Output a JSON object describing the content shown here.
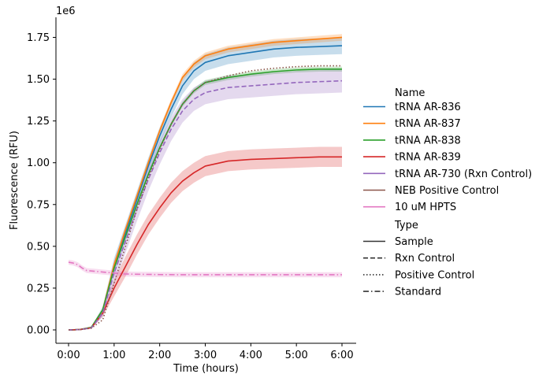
{
  "chart_data": {
    "type": "line",
    "x_tick_labels": [
      "0:00",
      "1:00",
      "2:00",
      "3:00",
      "4:00",
      "5:00",
      "6:00"
    ],
    "y_tick_labels": [
      "0.00",
      "0.25",
      "0.50",
      "0.75",
      "1.00",
      "1.25",
      "1.50",
      "1.75"
    ],
    "y_offset_text": "1e6",
    "xlabel": "Time (hours)",
    "ylabel": "Fluorescence (RFU)",
    "xlim": [
      0,
      6
    ],
    "ylim": [
      -0.08,
      1.87
    ],
    "legend": {
      "placement": "right",
      "hue_title": "Name",
      "style_title": "Type",
      "style_entries": [
        {
          "label": "Sample",
          "dash": "solid"
        },
        {
          "label": "Rxn Control",
          "dash": "dashed"
        },
        {
          "label": "Positive Control",
          "dash": "dotted"
        },
        {
          "label": "Standard",
          "dash": "dashdot"
        }
      ]
    },
    "series": [
      {
        "name": "tRNA AR-836",
        "color": "#1f77b4",
        "dash": "solid",
        "type": "Sample",
        "x": [
          0,
          0.25,
          0.5,
          0.75,
          1.0,
          1.25,
          1.5,
          1.75,
          2.0,
          2.25,
          2.5,
          2.75,
          3.0,
          3.5,
          4.0,
          4.5,
          5.0,
          5.5,
          6.0
        ],
        "y": [
          0.0,
          0.002,
          0.015,
          0.12,
          0.38,
          0.58,
          0.78,
          0.98,
          1.16,
          1.32,
          1.46,
          1.55,
          1.6,
          1.64,
          1.66,
          1.68,
          1.69,
          1.695,
          1.7
        ],
        "band": 0.05
      },
      {
        "name": "tRNA AR-837",
        "color": "#ff7f0e",
        "dash": "solid",
        "type": "Sample",
        "x": [
          0,
          0.25,
          0.5,
          0.75,
          1.0,
          1.25,
          1.5,
          1.75,
          2.0,
          2.25,
          2.5,
          2.75,
          3.0,
          3.5,
          4.0,
          4.5,
          5.0,
          5.5,
          6.0
        ],
        "y": [
          0.0,
          0.002,
          0.015,
          0.12,
          0.39,
          0.6,
          0.8,
          1.0,
          1.19,
          1.36,
          1.51,
          1.59,
          1.64,
          1.68,
          1.7,
          1.72,
          1.73,
          1.74,
          1.75
        ],
        "band": 0.02
      },
      {
        "name": "tRNA AR-838",
        "color": "#2ca02c",
        "dash": "solid",
        "type": "Sample",
        "x": [
          0,
          0.25,
          0.5,
          0.75,
          1.0,
          1.25,
          1.5,
          1.75,
          2.0,
          2.25,
          2.5,
          2.75,
          3.0,
          3.5,
          4.0,
          4.5,
          5.0,
          5.5,
          6.0
        ],
        "y": [
          0.0,
          0.002,
          0.015,
          0.12,
          0.37,
          0.56,
          0.75,
          0.93,
          1.09,
          1.23,
          1.35,
          1.43,
          1.48,
          1.51,
          1.53,
          1.545,
          1.555,
          1.56,
          1.56
        ],
        "band": 0.015
      },
      {
        "name": "tRNA AR-839",
        "color": "#d62728",
        "dash": "solid",
        "type": "Sample",
        "x": [
          0,
          0.25,
          0.5,
          0.75,
          1.0,
          1.25,
          1.5,
          1.75,
          2.0,
          2.25,
          2.5,
          2.75,
          3.0,
          3.5,
          4.0,
          4.5,
          5.0,
          5.5,
          6.0
        ],
        "y": [
          0.0,
          0.002,
          0.012,
          0.1,
          0.25,
          0.38,
          0.51,
          0.63,
          0.73,
          0.82,
          0.89,
          0.94,
          0.98,
          1.01,
          1.02,
          1.025,
          1.03,
          1.035,
          1.035
        ],
        "band": 0.06
      },
      {
        "name": "tRNA AR-730 (Rxn Control)",
        "color": "#9467bd",
        "dash": "dashed",
        "type": "Rxn Control",
        "x": [
          0,
          0.25,
          0.5,
          0.75,
          1.0,
          1.25,
          1.5,
          1.75,
          2.0,
          2.25,
          2.5,
          2.75,
          3.0,
          3.5,
          4.0,
          4.5,
          5.0,
          5.5,
          6.0
        ],
        "y": [
          0.0,
          0.002,
          0.012,
          0.1,
          0.34,
          0.53,
          0.72,
          0.9,
          1.06,
          1.2,
          1.31,
          1.38,
          1.42,
          1.45,
          1.46,
          1.47,
          1.48,
          1.485,
          1.49
        ],
        "band": 0.07
      },
      {
        "name": "NEB Positive Control",
        "color": "#8c564b",
        "dash": "dotted",
        "type": "Positive Control",
        "x": [
          0,
          0.25,
          0.5,
          0.75,
          1.0,
          1.25,
          1.5,
          1.75,
          2.0,
          2.25,
          2.5,
          2.75,
          3.0,
          3.5,
          4.0,
          4.5,
          5.0,
          5.5,
          6.0
        ],
        "y": [
          0.0,
          0.002,
          0.01,
          0.06,
          0.28,
          0.5,
          0.72,
          0.91,
          1.08,
          1.23,
          1.35,
          1.43,
          1.48,
          1.52,
          1.55,
          1.565,
          1.575,
          1.58,
          1.58
        ],
        "band": 0.0
      },
      {
        "name": "10 uM HPTS",
        "color": "#e377c2",
        "dash": "dashdot",
        "type": "Standard",
        "x": [
          0,
          0.1,
          0.2,
          0.3,
          0.4,
          0.6,
          0.8,
          1.0,
          1.2,
          1.5,
          2.0,
          2.5,
          3.0,
          4.0,
          5.0,
          6.0
        ],
        "y": [
          0.405,
          0.4,
          0.39,
          0.37,
          0.355,
          0.35,
          0.345,
          0.34,
          0.335,
          0.333,
          0.331,
          0.33,
          0.33,
          0.33,
          0.33,
          0.33
        ],
        "band": 0.015
      }
    ]
  }
}
